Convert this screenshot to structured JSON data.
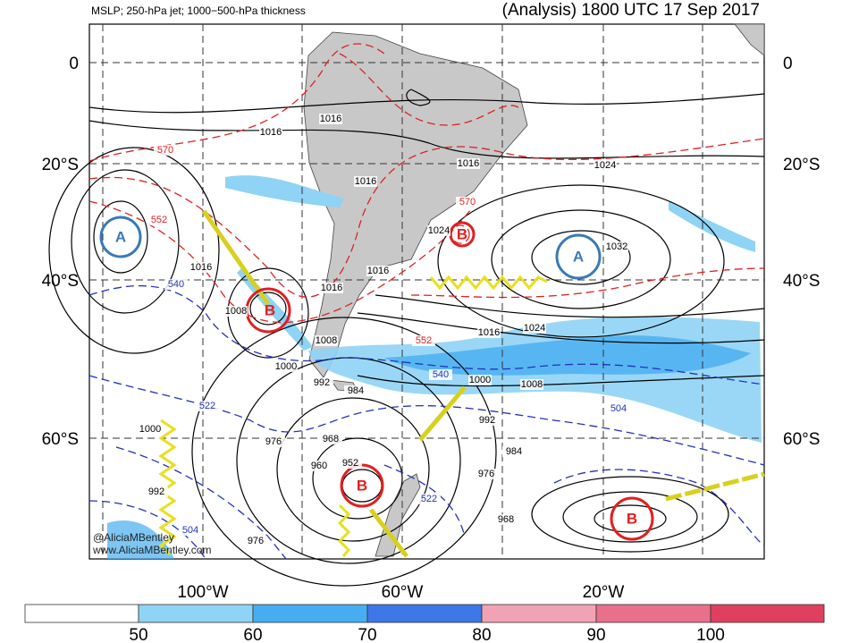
{
  "header": {
    "left": "MSLP; 250-hPa jet; 1000−500-hPa thickness",
    "right": "(Analysis) 1800 UTC 17 Sep 2017"
  },
  "lat_labels": [
    "0",
    "20°S",
    "40°S",
    "60°S"
  ],
  "lon_labels": [
    "100°W",
    "60°W",
    "20°W"
  ],
  "mslp_labels": [
    1016,
    1016,
    1016,
    1024,
    1016,
    1024,
    1032,
    1016,
    1016,
    1016,
    1008,
    1008,
    1016,
    1024,
    1000,
    1000,
    1008,
    992,
    984,
    992,
    984,
    1000,
    976,
    968,
    960,
    952,
    976,
    968,
    976,
    992
  ],
  "red_labels": [
    570,
    552,
    570,
    552
  ],
  "blue_labels": [
    540,
    540,
    522,
    504,
    522,
    504
  ],
  "centers": [
    "A",
    "A",
    "B",
    "B",
    "B",
    "B"
  ],
  "credit": [
    "@AliciaMBentley",
    "www.AliciaMBentley.com"
  ],
  "colorbar": {
    "ticks": [
      50,
      60,
      70,
      80,
      90,
      100
    ],
    "colors": [
      "#ffffff",
      "#8fd3f5",
      "#46aef0",
      "#3d78e6",
      "#f0a3b5",
      "#e8708b",
      "#e0405f"
    ]
  }
}
